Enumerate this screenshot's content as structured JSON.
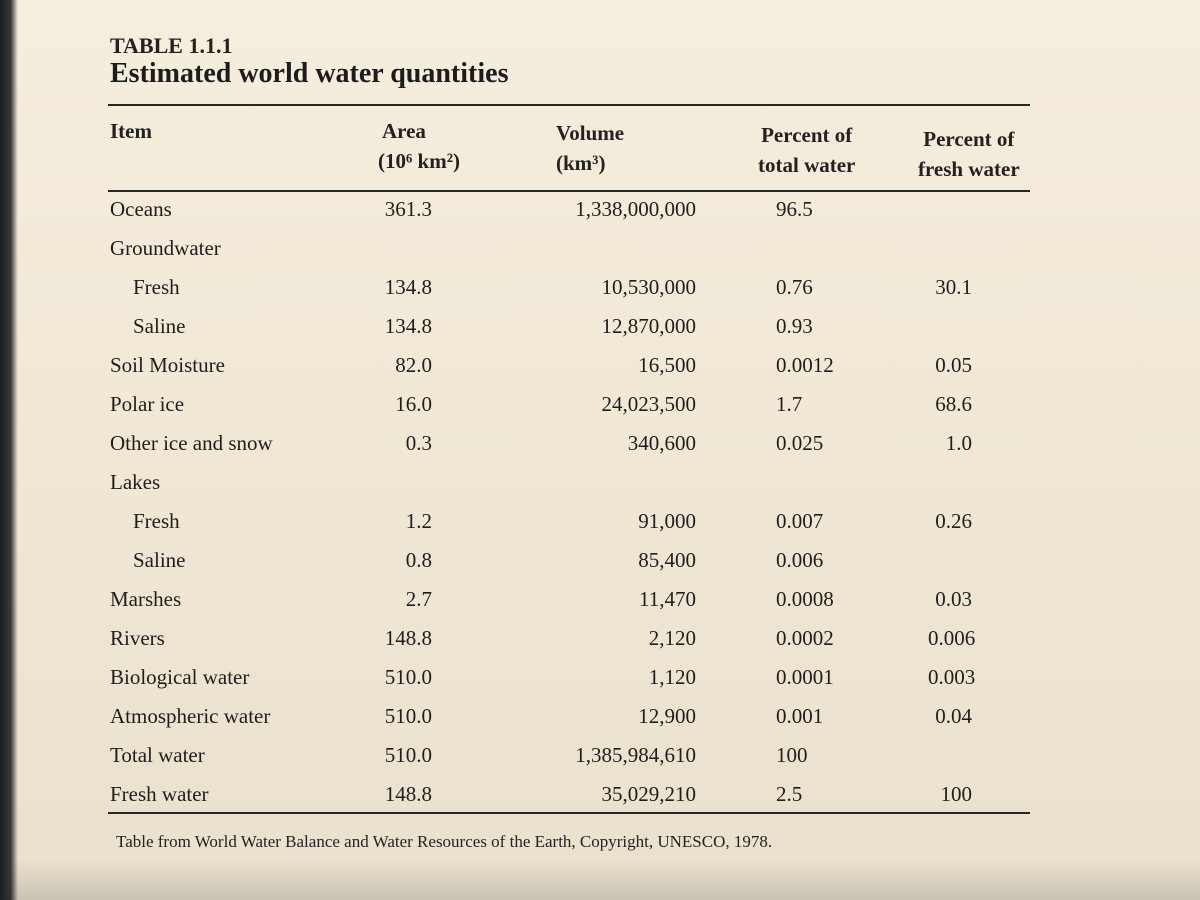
{
  "caption": {
    "label": "TABLE 1.1.1",
    "title": "Estimated world water quantities"
  },
  "headers": {
    "item": "Item",
    "area": [
      "Area",
      "(10⁶ km²)"
    ],
    "volume": [
      "Volume",
      "(km³)"
    ],
    "pct_total": [
      "Percent of",
      "total water"
    ],
    "pct_fresh": [
      "Percent of",
      "fresh water"
    ]
  },
  "rows": [
    {
      "item": "Oceans",
      "indent": false,
      "area": "361.3",
      "volume": "1,338,000,000",
      "pct_total": "96.5",
      "pct_fresh": ""
    },
    {
      "item": "Groundwater",
      "indent": false,
      "area": "",
      "volume": "",
      "pct_total": "",
      "pct_fresh": ""
    },
    {
      "item": "Fresh",
      "indent": true,
      "area": "134.8",
      "volume": "10,530,000",
      "pct_total": "0.76",
      "pct_fresh": "30.1"
    },
    {
      "item": "Saline",
      "indent": true,
      "area": "134.8",
      "volume": "12,870,000",
      "pct_total": "0.93",
      "pct_fresh": ""
    },
    {
      "item": "Soil Moisture",
      "indent": false,
      "area": "82.0",
      "volume": "16,500",
      "pct_total": "0.0012",
      "pct_fresh": "0.05"
    },
    {
      "item": "Polar ice",
      "indent": false,
      "area": "16.0",
      "volume": "24,023,500",
      "pct_total": "1.7",
      "pct_fresh": "68.6"
    },
    {
      "item": "Other ice and snow",
      "indent": false,
      "area": "0.3",
      "volume": "340,600",
      "pct_total": "0.025",
      "pct_fresh": "1.0"
    },
    {
      "item": "Lakes",
      "indent": false,
      "area": "",
      "volume": "",
      "pct_total": "",
      "pct_fresh": ""
    },
    {
      "item": "Fresh",
      "indent": true,
      "area": "1.2",
      "volume": "91,000",
      "pct_total": "0.007",
      "pct_fresh": "0.26"
    },
    {
      "item": "Saline",
      "indent": true,
      "area": "0.8",
      "volume": "85,400",
      "pct_total": "0.006",
      "pct_fresh": ""
    },
    {
      "item": "Marshes",
      "indent": false,
      "area": "2.7",
      "volume": "11,470",
      "pct_total": "0.0008",
      "pct_fresh": "0.03"
    },
    {
      "item": "Rivers",
      "indent": false,
      "area": "148.8",
      "volume": "2,120",
      "pct_total": "0.0002",
      "pct_fresh": "0.006"
    },
    {
      "item": "Biological water",
      "indent": false,
      "area": "510.0",
      "volume": "1,120",
      "pct_total": "0.0001",
      "pct_fresh": "0.003"
    },
    {
      "item": "Atmospheric water",
      "indent": false,
      "area": "510.0",
      "volume": "12,900",
      "pct_total": "0.001",
      "pct_fresh": "0.04"
    },
    {
      "item": "Total water",
      "indent": false,
      "area": "510.0",
      "volume": "1,385,984,610",
      "pct_total": "100",
      "pct_fresh": ""
    },
    {
      "item": "Fresh water",
      "indent": false,
      "area": "148.8",
      "volume": "35,029,210",
      "pct_total": "2.5",
      "pct_fresh": "100"
    }
  ],
  "source": "Table from World Water Balance and Water Resources of the Earth, Copyright, UNESCO, 1978."
}
